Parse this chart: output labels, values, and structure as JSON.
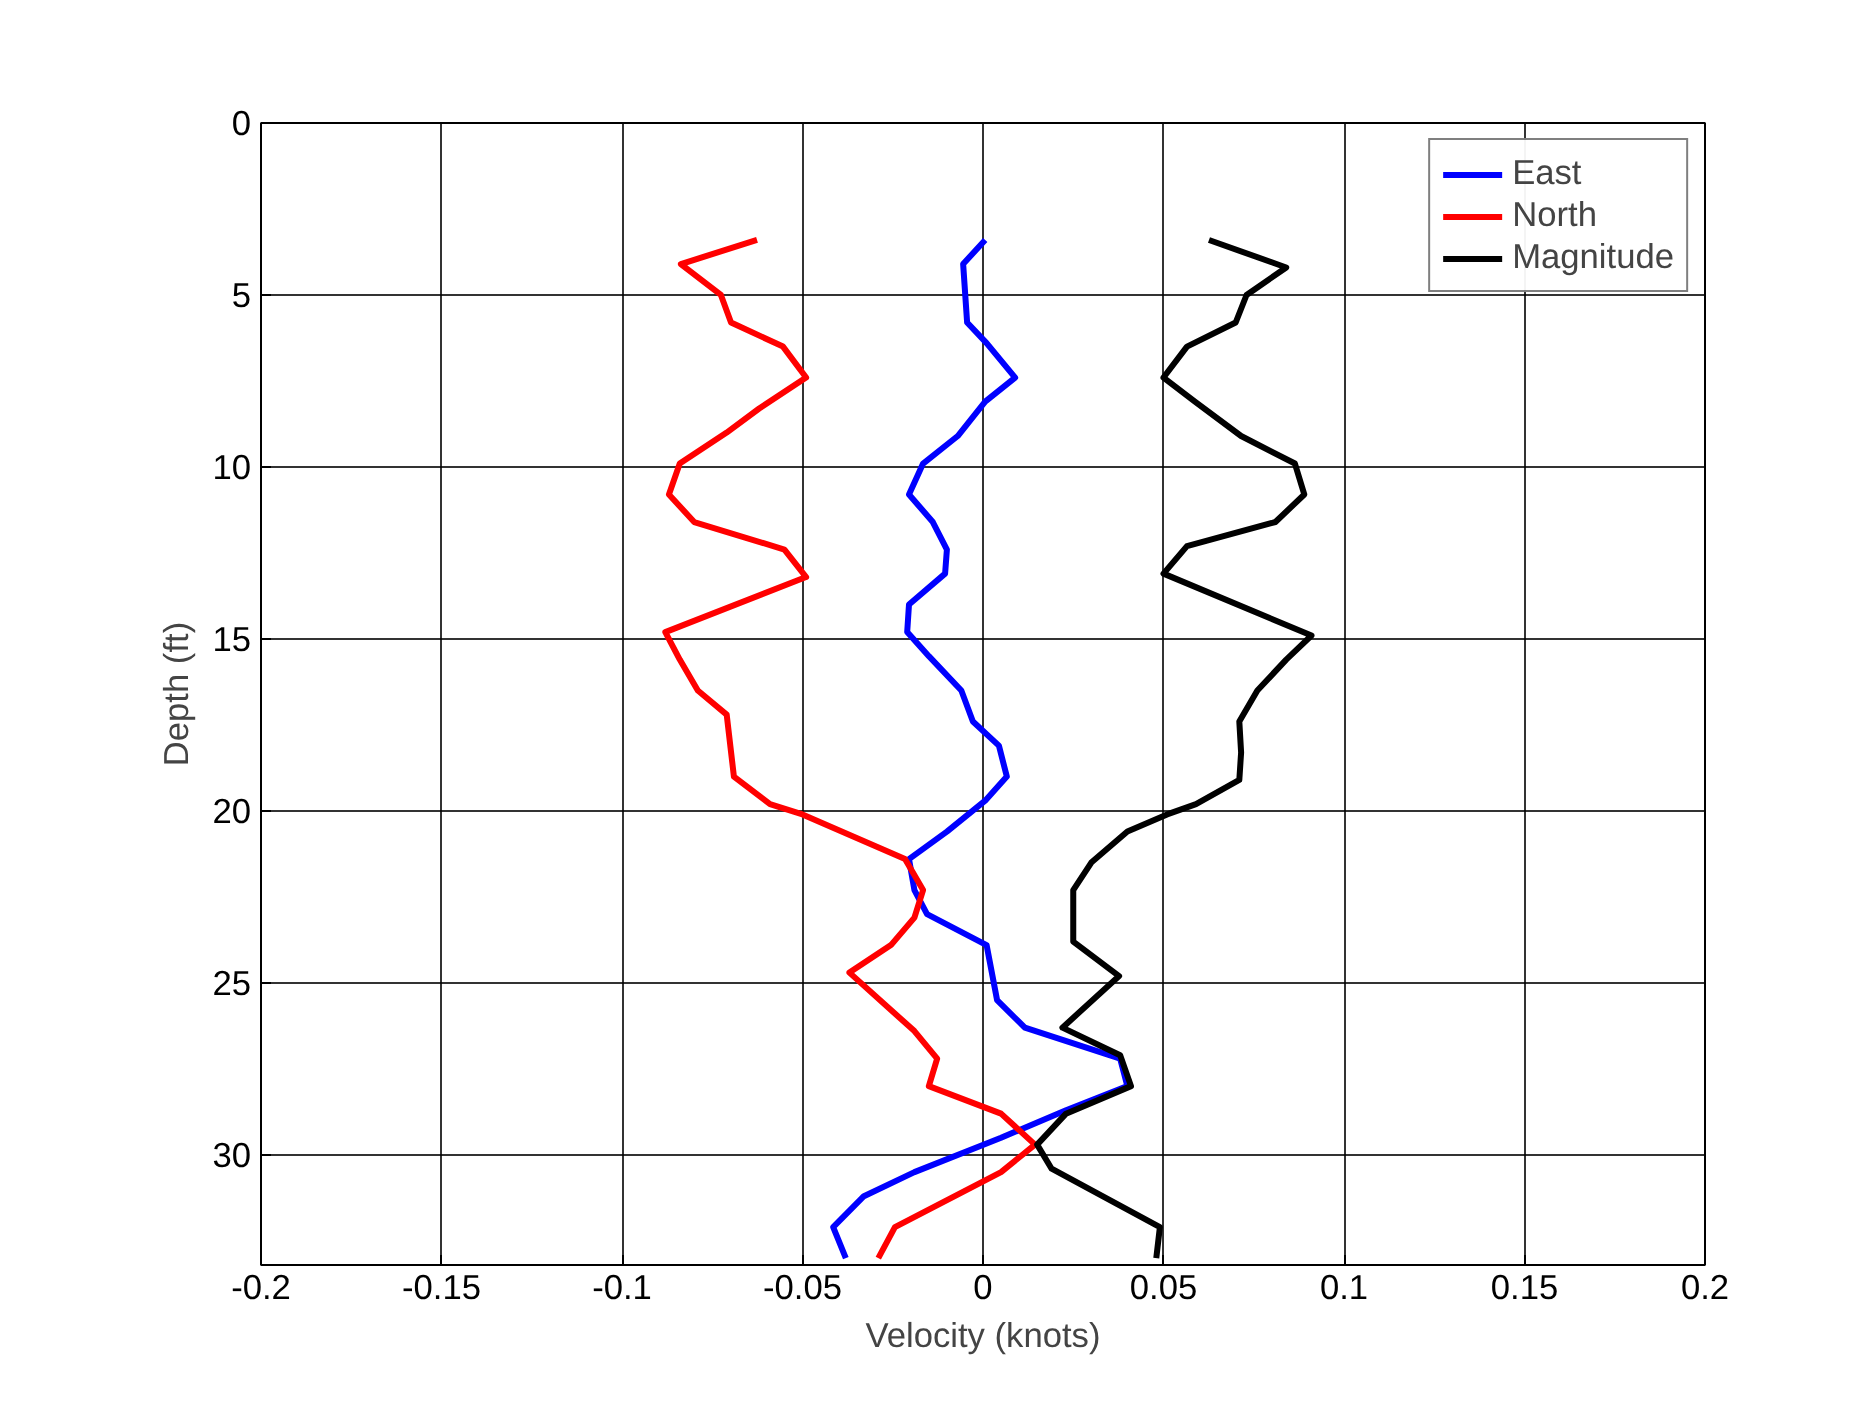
{
  "chart_data": {
    "type": "line",
    "xlabel": "Velocity (knots)",
    "ylabel": "Depth (ft)",
    "xlim": [
      -0.2,
      0.2
    ],
    "ylim": [
      33.2,
      0
    ],
    "xticks": [
      -0.2,
      -0.15,
      -0.1,
      -0.05,
      0,
      0.05,
      0.1,
      0.15,
      0.2
    ],
    "yticks": [
      0,
      5,
      10,
      15,
      20,
      25,
      30
    ],
    "grid": true,
    "legend": "top right",
    "line_style": "solid",
    "marker": "none",
    "series": [
      {
        "name": "East",
        "color": "#0000ff",
        "x": [
          0.0006,
          -0.0055,
          -0.0044,
          0.001,
          0.0089,
          0.0006,
          -0.007,
          -0.0166,
          -0.0205,
          -0.0139,
          -0.01,
          -0.0105,
          -0.0205,
          -0.021,
          -0.015,
          -0.006,
          -0.0028,
          0.0044,
          0.0066,
          0.0006,
          -0.01,
          -0.0205,
          -0.019,
          -0.0155,
          0.001,
          0.0039,
          0.0116,
          0.038,
          0.04,
          0.023,
          0.005,
          -0.019,
          -0.033,
          -0.0415,
          -0.038
        ],
        "values": [
          3.4,
          4.1,
          5.8,
          6.4,
          7.4,
          8.1,
          9.1,
          9.9,
          10.8,
          11.6,
          12.4,
          13.1,
          14.0,
          14.8,
          15.5,
          16.5,
          17.4,
          18.1,
          19.0,
          19.7,
          20.6,
          21.4,
          22.3,
          23.0,
          23.9,
          25.5,
          26.3,
          27.2,
          28.0,
          28.7,
          29.5,
          30.5,
          31.2,
          32.1,
          33.0
        ]
      },
      {
        "name": "North",
        "color": "#ff0000",
        "x": [
          -0.0626,
          -0.0837,
          -0.0726,
          -0.0698,
          -0.0554,
          -0.049,
          -0.062,
          -0.071,
          -0.084,
          -0.087,
          -0.08,
          -0.055,
          -0.049,
          -0.088,
          -0.084,
          -0.079,
          -0.071,
          -0.07,
          -0.069,
          -0.059,
          -0.05,
          -0.0216,
          -0.0166,
          -0.019,
          -0.0255,
          -0.037,
          -0.019,
          -0.0127,
          -0.015,
          0.005,
          0.0144,
          0.005,
          -0.0244,
          -0.029
        ],
        "values": [
          3.4,
          4.1,
          5.0,
          5.8,
          6.5,
          7.4,
          8.3,
          9.0,
          9.9,
          10.8,
          11.6,
          12.4,
          13.2,
          14.8,
          15.6,
          16.5,
          17.2,
          18.1,
          19.0,
          19.8,
          20.1,
          21.4,
          22.3,
          23.1,
          23.9,
          24.7,
          26.4,
          27.2,
          28.0,
          28.8,
          29.7,
          30.5,
          32.1,
          33.0
        ]
      },
      {
        "name": "Magnitude",
        "color": "#000000",
        "x": [
          0.0626,
          0.084,
          0.073,
          0.07,
          0.0565,
          0.05,
          0.0587,
          0.0715,
          0.0864,
          0.089,
          0.081,
          0.0565,
          0.05,
          0.091,
          0.084,
          0.076,
          0.071,
          0.0715,
          0.071,
          0.059,
          0.051,
          0.04,
          0.03,
          0.025,
          0.025,
          0.0377,
          0.022,
          0.038,
          0.041,
          0.023,
          0.015,
          0.019,
          0.049,
          0.048
        ],
        "values": [
          3.4,
          4.2,
          5.0,
          5.8,
          6.5,
          7.4,
          8.1,
          9.1,
          9.9,
          10.8,
          11.6,
          12.3,
          13.1,
          14.9,
          15.6,
          16.5,
          17.4,
          18.3,
          19.1,
          19.8,
          20.1,
          20.6,
          21.5,
          22.3,
          23.8,
          24.8,
          26.3,
          27.1,
          28.0,
          28.8,
          29.7,
          30.4,
          32.1,
          33.0
        ]
      }
    ]
  }
}
